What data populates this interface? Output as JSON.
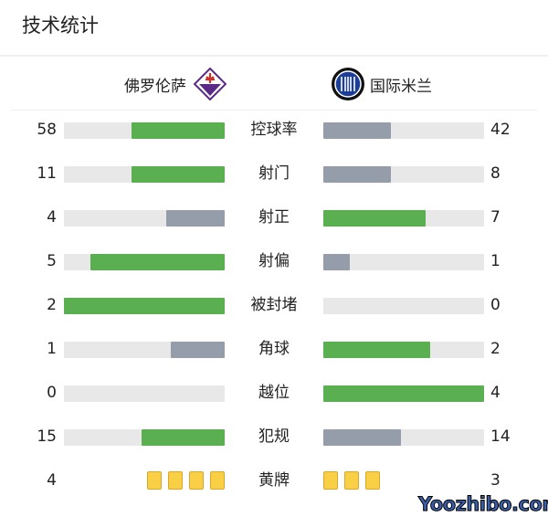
{
  "title": "技术统计",
  "home": {
    "name": "佛罗伦萨",
    "logo": "fiorentina-logo"
  },
  "away": {
    "name": "国际米兰",
    "logo": "inter-logo"
  },
  "colors": {
    "leader": "#5aaf50",
    "trailer": "#959dab",
    "track": "#e8e8e8",
    "card": "#f9cf45"
  },
  "stats": [
    {
      "label": "控球率",
      "home": "58",
      "away": "42"
    },
    {
      "label": "射门",
      "home": "11",
      "away": "8"
    },
    {
      "label": "射正",
      "home": "4",
      "away": "7"
    },
    {
      "label": "射偏",
      "home": "5",
      "away": "1"
    },
    {
      "label": "被封堵",
      "home": "2",
      "away": "0"
    },
    {
      "label": "角球",
      "home": "1",
      "away": "2"
    },
    {
      "label": "越位",
      "home": "0",
      "away": "4"
    },
    {
      "label": "犯规",
      "home": "15",
      "away": "14"
    }
  ],
  "yellow": {
    "label": "黄牌",
    "home": "4",
    "away": "3"
  },
  "watermark": "Yoozhibo.com"
}
